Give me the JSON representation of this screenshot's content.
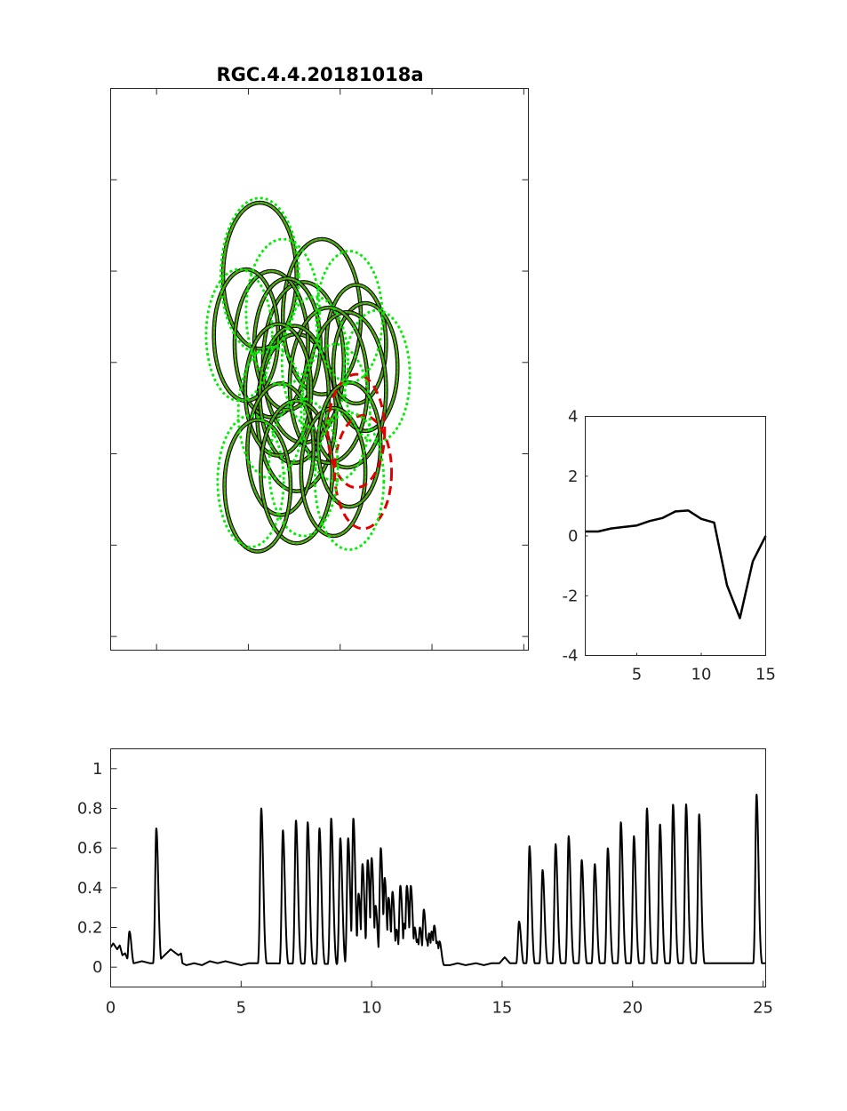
{
  "chart_data": [
    {
      "type": "scatter",
      "subtype": "receptive-field-ellipse-mosaic",
      "title": "RGC.4.4.20181018a",
      "xlim": [
        0,
        9.1
      ],
      "ylim": [
        0,
        6.15
      ],
      "xticks": [
        1,
        3,
        5,
        7,
        9
      ],
      "yticks": [
        0.15,
        1.15,
        2.15,
        3.15,
        4.15,
        5.15,
        6.15
      ],
      "tick_labels_visible": false,
      "colors": {
        "fit_outline": "#000000",
        "fit_fill": "#6e8b1e",
        "neighbor": "#00ee00",
        "highlight": "#e00000"
      },
      "ellipses": [
        {
          "cx": 3.25,
          "cy": 4.1,
          "rx": 0.8,
          "ry": 0.8,
          "style": "fit"
        },
        {
          "cx": 4.6,
          "cy": 3.65,
          "rx": 0.85,
          "ry": 0.85,
          "style": "fit"
        },
        {
          "cx": 4.2,
          "cy": 3.15,
          "rx": 0.88,
          "ry": 0.88,
          "style": "fit"
        },
        {
          "cx": 4.05,
          "cy": 2.6,
          "rx": 0.86,
          "ry": 0.86,
          "style": "fit"
        },
        {
          "cx": 3.5,
          "cy": 3.35,
          "rx": 0.8,
          "ry": 0.8,
          "style": "fit"
        },
        {
          "cx": 2.95,
          "cy": 3.45,
          "rx": 0.7,
          "ry": 0.72,
          "style": "fit"
        },
        {
          "cx": 3.85,
          "cy": 3.35,
          "rx": 0.72,
          "ry": 0.72,
          "style": "fit"
        },
        {
          "cx": 5.35,
          "cy": 3.35,
          "rx": 0.65,
          "ry": 0.65,
          "style": "fit"
        },
        {
          "cx": 5.55,
          "cy": 3.1,
          "rx": 0.7,
          "ry": 0.7,
          "style": "fit"
        },
        {
          "cx": 5.15,
          "cy": 2.85,
          "rx": 0.85,
          "ry": 0.85,
          "style": "fit"
        },
        {
          "cx": 4.75,
          "cy": 2.9,
          "rx": 0.85,
          "ry": 0.85,
          "style": "fit"
        },
        {
          "cx": 4.0,
          "cy": 2.8,
          "rx": 0.75,
          "ry": 0.75,
          "style": "fit"
        },
        {
          "cx": 3.65,
          "cy": 2.85,
          "rx": 0.72,
          "ry": 0.72,
          "style": "fit"
        },
        {
          "cx": 3.7,
          "cy": 2.2,
          "rx": 0.72,
          "ry": 0.72,
          "style": "fit"
        },
        {
          "cx": 4.05,
          "cy": 1.95,
          "rx": 0.78,
          "ry": 0.78,
          "style": "fit"
        },
        {
          "cx": 4.85,
          "cy": 1.95,
          "rx": 0.7,
          "ry": 0.7,
          "style": "fit"
        },
        {
          "cx": 5.2,
          "cy": 2.25,
          "rx": 0.68,
          "ry": 0.68,
          "style": "fit"
        },
        {
          "cx": 3.2,
          "cy": 1.8,
          "rx": 0.72,
          "ry": 0.72,
          "style": "fit"
        },
        {
          "cx": 5.35,
          "cy": 2.4,
          "rx": 0.62,
          "ry": 0.62,
          "style": "highlight"
        },
        {
          "cx": 5.5,
          "cy": 1.95,
          "rx": 0.62,
          "ry": 0.62,
          "style": "highlight"
        },
        {
          "cx": 3.25,
          "cy": 4.1,
          "rx": 0.85,
          "ry": 0.85,
          "style": "neighbor"
        },
        {
          "cx": 2.8,
          "cy": 3.45,
          "rx": 0.72,
          "ry": 0.72,
          "style": "neighbor"
        },
        {
          "cx": 3.75,
          "cy": 3.7,
          "rx": 0.8,
          "ry": 0.8,
          "style": "neighbor"
        },
        {
          "cx": 5.2,
          "cy": 3.65,
          "rx": 0.72,
          "ry": 0.72,
          "style": "neighbor"
        },
        {
          "cx": 4.45,
          "cy": 3.15,
          "rx": 0.72,
          "ry": 0.72,
          "style": "neighbor"
        },
        {
          "cx": 3.5,
          "cy": 2.6,
          "rx": 0.72,
          "ry": 0.72,
          "style": "neighbor"
        },
        {
          "cx": 4.9,
          "cy": 2.6,
          "rx": 0.75,
          "ry": 0.75,
          "style": "neighbor"
        },
        {
          "cx": 5.8,
          "cy": 3.0,
          "rx": 0.72,
          "ry": 0.72,
          "style": "neighbor"
        },
        {
          "cx": 4.2,
          "cy": 2.0,
          "rx": 0.75,
          "ry": 0.75,
          "style": "neighbor"
        },
        {
          "cx": 3.05,
          "cy": 1.85,
          "rx": 0.72,
          "ry": 0.72,
          "style": "neighbor"
        },
        {
          "cx": 5.2,
          "cy": 1.85,
          "rx": 0.75,
          "ry": 0.75,
          "style": "neighbor"
        }
      ]
    },
    {
      "type": "line",
      "xlim": [
        1,
        15
      ],
      "ylim": [
        -4,
        4
      ],
      "xticks": [
        5,
        10,
        15
      ],
      "yticks": [
        -4,
        -2,
        0,
        2,
        4
      ],
      "series": [
        {
          "x": [
            1,
            2,
            3,
            4,
            5,
            6,
            7,
            8,
            9,
            10,
            11,
            12,
            13,
            14,
            15
          ],
          "values": [
            0.15,
            0.15,
            0.25,
            0.3,
            0.35,
            0.5,
            0.6,
            0.82,
            0.85,
            0.57,
            0.45,
            -1.65,
            -2.75,
            -0.85,
            0.0
          ]
        }
      ]
    },
    {
      "type": "line",
      "xlim": [
        0,
        25.1
      ],
      "ylim": [
        -0.1,
        1.1
      ],
      "xticks": [
        0,
        5,
        10,
        15,
        20,
        25
      ],
      "yticks": [
        0,
        0.2,
        0.4,
        0.6,
        0.8,
        1
      ],
      "baseline": [
        [
          0,
          0.1
        ],
        [
          0.1,
          0.12
        ],
        [
          0.25,
          0.09
        ],
        [
          0.35,
          0.11
        ],
        [
          0.45,
          0.06
        ],
        [
          0.55,
          0.07
        ],
        [
          0.65,
          0.04
        ],
        [
          0.7,
          0.02
        ],
        [
          0.9,
          0.02
        ],
        [
          1.2,
          0.03
        ],
        [
          1.5,
          0.02
        ],
        [
          1.75,
          0.02
        ],
        [
          2.3,
          0.09
        ],
        [
          2.5,
          0.07
        ],
        [
          2.6,
          0.06
        ],
        [
          2.7,
          0.07
        ],
        [
          2.75,
          0.02
        ],
        [
          2.9,
          0.01
        ],
        [
          3.2,
          0.02
        ],
        [
          3.5,
          0.01
        ],
        [
          3.8,
          0.03
        ],
        [
          4.1,
          0.02
        ],
        [
          4.4,
          0.03
        ],
        [
          4.7,
          0.02
        ],
        [
          5.0,
          0.01
        ],
        [
          5.3,
          0.02
        ],
        [
          5.6,
          0.02
        ],
        [
          13.0,
          0.01
        ],
        [
          13.3,
          0.02
        ],
        [
          13.6,
          0.01
        ],
        [
          14.0,
          0.02
        ],
        [
          14.3,
          0.01
        ],
        [
          14.6,
          0.02
        ],
        [
          14.9,
          0.02
        ],
        [
          15.1,
          0.05
        ],
        [
          15.3,
          0.02
        ],
        [
          24.6,
          0.02
        ],
        [
          25.1,
          0.02
        ]
      ],
      "peaks": [
        {
          "t": 0.72,
          "h": 0.18
        },
        {
          "t": 1.75,
          "h": 0.7
        },
        {
          "t": 5.77,
          "h": 0.8
        },
        {
          "t": 6.6,
          "h": 0.69
        },
        {
          "t": 7.1,
          "h": 0.74
        },
        {
          "t": 7.55,
          "h": 0.73
        },
        {
          "t": 8.0,
          "h": 0.7
        },
        {
          "t": 8.45,
          "h": 0.75
        },
        {
          "t": 8.8,
          "h": 0.65
        },
        {
          "t": 9.1,
          "h": 0.65
        },
        {
          "t": 9.3,
          "h": 0.75
        },
        {
          "t": 9.5,
          "h": 0.37
        },
        {
          "t": 9.65,
          "h": 0.52
        },
        {
          "t": 9.85,
          "h": 0.54
        },
        {
          "t": 10.0,
          "h": 0.55
        },
        {
          "t": 10.15,
          "h": 0.31
        },
        {
          "t": 10.35,
          "h": 0.6
        },
        {
          "t": 10.5,
          "h": 0.45
        },
        {
          "t": 10.65,
          "h": 0.35
        },
        {
          "t": 10.8,
          "h": 0.38
        },
        {
          "t": 10.95,
          "h": 0.19
        },
        {
          "t": 11.1,
          "h": 0.41
        },
        {
          "t": 11.25,
          "h": 0.22
        },
        {
          "t": 11.35,
          "h": 0.41
        },
        {
          "t": 11.5,
          "h": 0.41
        },
        {
          "t": 11.65,
          "h": 0.2
        },
        {
          "t": 11.75,
          "h": 0.14
        },
        {
          "t": 11.85,
          "h": 0.2
        },
        {
          "t": 12.0,
          "h": 0.29
        },
        {
          "t": 12.1,
          "h": 0.14
        },
        {
          "t": 12.2,
          "h": 0.17
        },
        {
          "t": 12.3,
          "h": 0.18
        },
        {
          "t": 12.4,
          "h": 0.21
        },
        {
          "t": 12.5,
          "h": 0.13
        },
        {
          "t": 12.6,
          "h": 0.13
        },
        {
          "t": 15.65,
          "h": 0.23
        },
        {
          "t": 16.05,
          "h": 0.61
        },
        {
          "t": 16.55,
          "h": 0.49
        },
        {
          "t": 17.05,
          "h": 0.62
        },
        {
          "t": 17.55,
          "h": 0.66
        },
        {
          "t": 18.05,
          "h": 0.54
        },
        {
          "t": 18.55,
          "h": 0.52
        },
        {
          "t": 19.05,
          "h": 0.6
        },
        {
          "t": 19.55,
          "h": 0.73
        },
        {
          "t": 20.05,
          "h": 0.66
        },
        {
          "t": 20.55,
          "h": 0.8
        },
        {
          "t": 21.05,
          "h": 0.72
        },
        {
          "t": 21.55,
          "h": 0.82
        },
        {
          "t": 22.05,
          "h": 0.82
        },
        {
          "t": 22.55,
          "h": 0.77
        },
        {
          "t": 24.75,
          "h": 0.87
        }
      ]
    }
  ]
}
